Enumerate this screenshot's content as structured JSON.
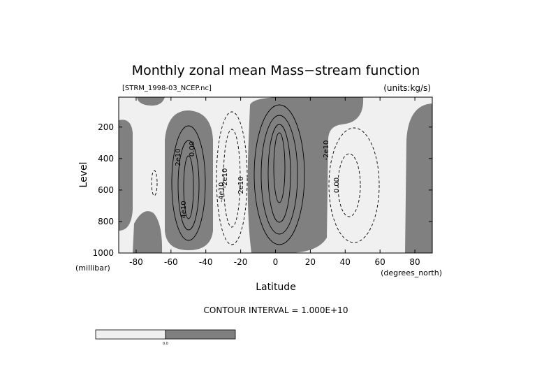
{
  "chart_data": {
    "type": "contour",
    "title": "Monthly zonal mean Mass−stream function",
    "subtitle": "[STRM_1998-03_NCEP.nc]",
    "units": "(units:kg/s)",
    "x_label": "Latitude",
    "x_units": "(degrees_north)",
    "y_label": "Level",
    "y_units": "(millibar)",
    "xlim": [
      -90,
      90
    ],
    "xticks": [
      -80,
      -60,
      -40,
      -20,
      0,
      20,
      40,
      60,
      80
    ],
    "ylim": [
      1000,
      10
    ],
    "yticks": [
      200,
      400,
      600,
      800,
      1000
    ],
    "contour_interval": "CONTOUR INTERVAL = 1.000E+10",
    "contour_labels": [
      "2e10",
      "4e10",
      "0.00",
      "-2e10",
      "-4e10",
      "2e10",
      "-2e10",
      "0.00"
    ],
    "colorbar_labels": [
      "0.0"
    ],
    "colors": {
      "negative": "#f0f0f0",
      "positive": "#808080"
    }
  }
}
